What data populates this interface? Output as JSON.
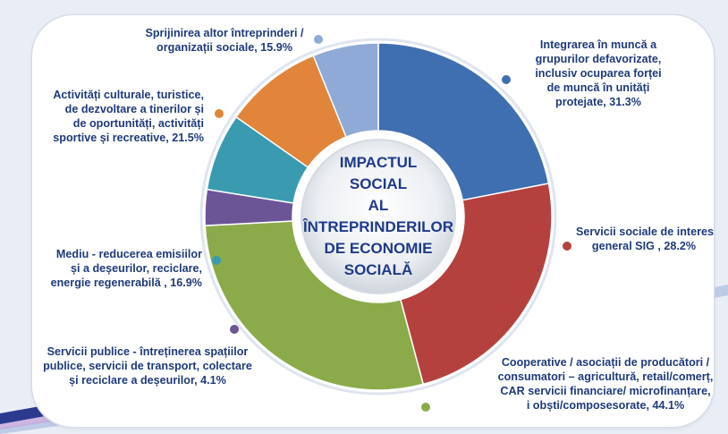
{
  "chart_data": {
    "type": "pie",
    "title": "IMPACTUL SOCIAL AL ÎNTREPRINDERILOR DE ECONOMIE SOCIALĂ",
    "title_lines": [
      "IMPACTUL",
      "SOCIAL",
      "AL",
      "ÎNTREPRINDERILOR",
      "DE ECONOMIE",
      "SOCIALĂ"
    ],
    "unit": "%",
    "slices": [
      {
        "label": "Integrarea în muncă a grupurilor defavorizate, inclusiv ocuparea forței de muncă în unități protejate, 31.3%",
        "lines": [
          "Integrarea în muncă a",
          "grupurilor defavorizate,",
          "inclusiv ocuparea forței",
          "de muncă în unități",
          "protejate, 31.3%"
        ],
        "value": 31.3,
        "color": "#3f6fb0"
      },
      {
        "label": "Servicii sociale de interes general SIG , 28.2%",
        "lines": [
          "Servicii sociale de interes",
          "general SIG , 28.2%"
        ],
        "value": 28.2,
        "color": "#b5413f"
      },
      {
        "label": "Cooperative / asociații de producători / consumatori – agricultură, retail/comerț, CAR servicii financiare/ microfinanțare, i obști/composesorate, 44.1%",
        "lines": [
          "Cooperative / asociații de producători /",
          "consumatori – agricultură, retail/comerț,",
          "CAR servicii financiare/ microfinanțare,",
          "i obști/composesorate, 44.1%"
        ],
        "value": 44.1,
        "color": "#8bab4a"
      },
      {
        "label": "Servicii publice - întreținerea spațiilor publice, servicii de transport, colectare și reciclare a deșeurilor, 4.1%",
        "lines": [
          "Servicii publice - întreținerea spațiilor",
          "publice, servicii de transport, colectare",
          "și reciclare a deșeurilor, 4.1%"
        ],
        "value": 4.1,
        "color": "#6b5597"
      },
      {
        "label": "Mediu - reducerea emisiilor și a deșeurilor, reciclare, energie regenerabilă , 16.9%",
        "lines": [
          "Mediu - reducerea emisiilor",
          "și a deșeurilor, reciclare,",
          "energie regenerabilă , 16.9%"
        ],
        "value": 16.9,
        "color": "#3a9bb0"
      },
      {
        "label": "Activități culturale, turistice, de dezvoltare a tinerilor și de oportunități, activități sportive și recreative, 21.5%",
        "lines": [
          "Activități culturale, turistice,",
          "de dezvoltare a tinerilor și",
          "de oportunități, activități",
          "sportive și recreative, 21.5%"
        ],
        "value": 21.5,
        "color": "#e0853a"
      },
      {
        "label": "Sprijinirea altor întreprinderi / organizații sociale, 15.9%",
        "lines": [
          "Sprijinirea altor întreprinderi /",
          "organizații sociale, 15.9%"
        ],
        "value": 15.9,
        "color": "#8faad6"
      }
    ],
    "legend": "none"
  }
}
